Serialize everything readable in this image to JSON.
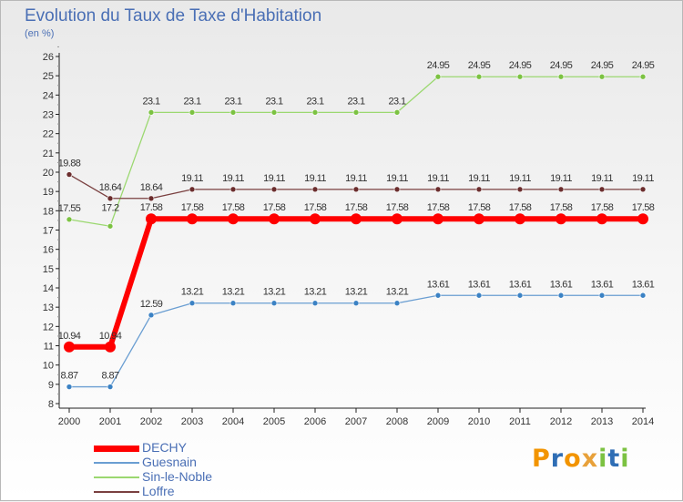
{
  "page": {
    "title": "Evolution du Taux de Taxe d'Habitation",
    "subtitle": "(en %)"
  },
  "logo": {
    "letters": [
      "P",
      "r",
      "o",
      "x",
      "i",
      "t",
      "i"
    ],
    "colors": [
      "#f29400",
      "#2f6eb5",
      "#f29400",
      "#e8a13a",
      "#7cc242",
      "#2f6eb5",
      "#7cc242"
    ]
  },
  "chart_data": {
    "type": "line",
    "x": [
      2000,
      2001,
      2002,
      2003,
      2004,
      2005,
      2006,
      2007,
      2008,
      2009,
      2010,
      2011,
      2012,
      2013,
      2014
    ],
    "ylim": [
      8,
      26
    ],
    "yticks": [
      8,
      9,
      10,
      11,
      12,
      13,
      14,
      15,
      16,
      17,
      18,
      19,
      20,
      21,
      22,
      23,
      24,
      25,
      26
    ],
    "grid": false,
    "legend": "bottom-left",
    "series": [
      {
        "name": "DECHY",
        "color": "#ff0000",
        "width": 6,
        "marker": 6,
        "values": [
          10.94,
          10.94,
          17.58,
          17.58,
          17.58,
          17.58,
          17.58,
          17.58,
          17.58,
          17.58,
          17.58,
          17.58,
          17.58,
          17.58,
          17.58
        ],
        "labels": [
          "10.94",
          "10.94",
          "17.58",
          "17.58",
          "17.58",
          "17.58",
          "17.58",
          "17.58",
          "17.58",
          "17.58",
          "17.58",
          "17.58",
          "17.58",
          "17.58",
          "17.58"
        ]
      },
      {
        "name": "Guesnain",
        "color": "#6a9ed2",
        "dot": "#3b82c4",
        "width": 1.3,
        "marker": 3,
        "values": [
          8.87,
          8.87,
          12.59,
          13.21,
          13.21,
          13.21,
          13.21,
          13.21,
          13.21,
          13.61,
          13.61,
          13.61,
          13.61,
          13.61,
          13.61
        ],
        "labels": [
          "8.87",
          "8.87",
          "12.59",
          "13.21",
          "13.21",
          "13.21",
          "13.21",
          "13.21",
          "13.21",
          "13.61",
          "13.61",
          "13.61",
          "13.61",
          "13.61",
          "13.61"
        ]
      },
      {
        "name": "Sin-le-Noble",
        "color": "#9bd870",
        "dot": "#7cc242",
        "width": 1.3,
        "marker": 3,
        "values": [
          17.55,
          17.2,
          23.1,
          23.1,
          23.1,
          23.1,
          23.1,
          23.1,
          23.1,
          24.95,
          24.95,
          24.95,
          24.95,
          24.95,
          24.95
        ],
        "labels": [
          "17.55",
          "17.2",
          "23.1",
          "23.1",
          "23.1",
          "23.1",
          "23.1",
          "23.1",
          "23.1",
          "24.95",
          "24.95",
          "24.95",
          "24.95",
          "24.95",
          "24.95"
        ]
      },
      {
        "name": "Loffre",
        "color": "#7a4040",
        "dot": "#6b2d2d",
        "width": 1.3,
        "marker": 3,
        "values": [
          19.88,
          18.64,
          18.64,
          19.11,
          19.11,
          19.11,
          19.11,
          19.11,
          19.11,
          19.11,
          19.11,
          19.11,
          19.11,
          19.11,
          19.11
        ],
        "labels": [
          "19.88",
          "18.64",
          "18.64",
          "19.11",
          "19.11",
          "19.11",
          "19.11",
          "19.11",
          "19.11",
          "19.11",
          "19.11",
          "19.11",
          "19.11",
          "19.11",
          "19.11"
        ]
      }
    ]
  }
}
